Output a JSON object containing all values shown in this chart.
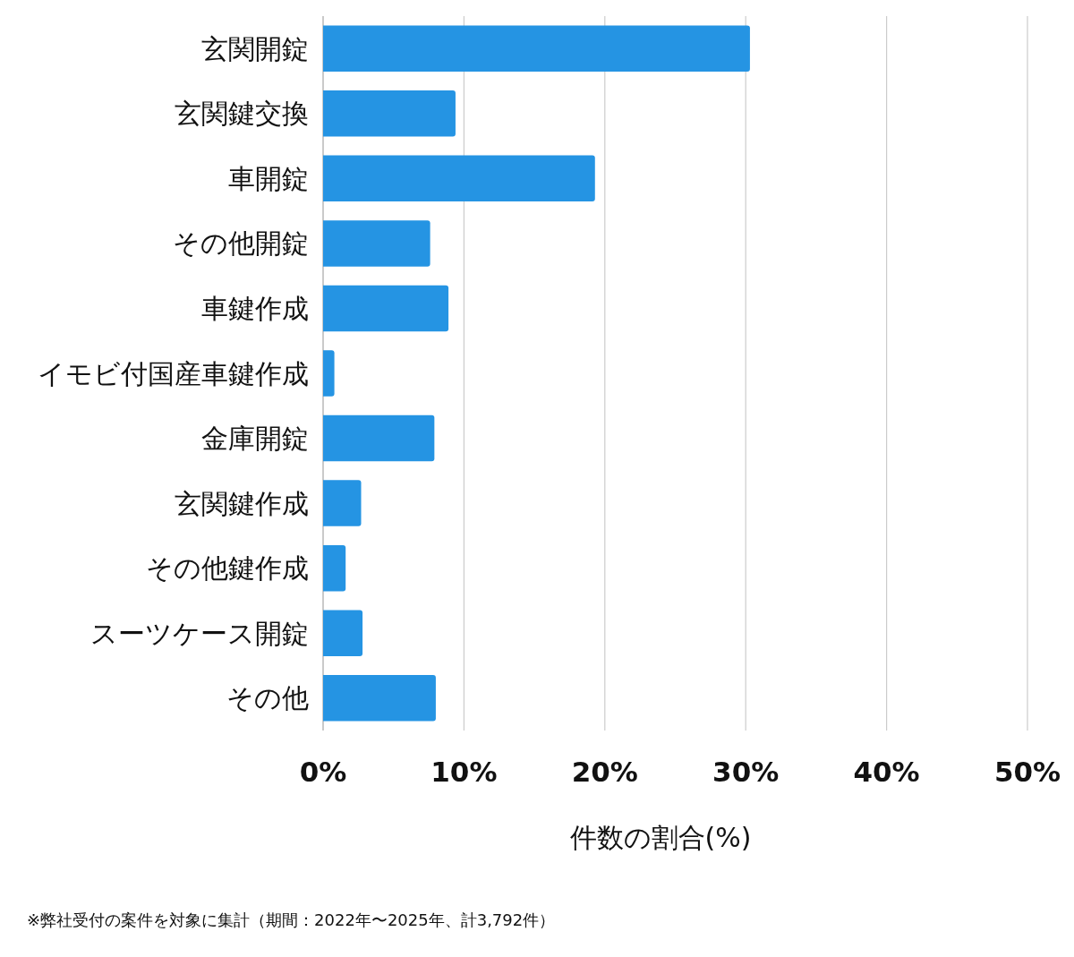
{
  "chart_data": {
    "type": "bar",
    "orientation": "horizontal",
    "categories": [
      "玄関開錠",
      "玄関鍵交換",
      "車開錠",
      "その他開錠",
      "車鍵作成",
      "イモビ付国産車鍵作成",
      "金庫開錠",
      "玄関鍵作成",
      "その他鍵作成",
      "スーツケース開錠",
      "その他"
    ],
    "values": [
      30.3,
      9.4,
      19.3,
      7.6,
      8.9,
      0.8,
      7.9,
      2.7,
      1.6,
      2.8,
      8.0
    ],
    "color": "#2594e3",
    "xlim": [
      0,
      50
    ],
    "xticks": [
      {
        "value": 0,
        "label": "0%"
      },
      {
        "value": 10,
        "label": "10%"
      },
      {
        "value": 20,
        "label": "20%"
      },
      {
        "value": 30,
        "label": "30%"
      },
      {
        "value": 40,
        "label": "40%"
      },
      {
        "value": 50,
        "label": "50%"
      }
    ],
    "xlabel": "件数の割合(%)",
    "grid": "x",
    "annotations": [
      "※弊社受付の案件を対象に集計（期間：2022年〜2025年、計3,792件）"
    ]
  }
}
